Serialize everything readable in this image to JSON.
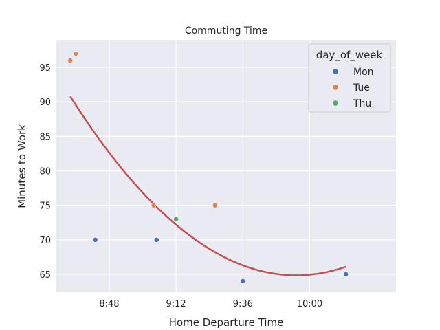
{
  "chart_data": {
    "type": "scatter",
    "title": "Commuting Time",
    "xlabel": "Home Departure Time",
    "ylabel": "Minutes to Work",
    "x_ticks": [
      "8:48",
      "9:12",
      "9:36",
      "10:00"
    ],
    "y_ticks": [
      65,
      70,
      75,
      80,
      85,
      90,
      95
    ],
    "xlim": [
      "8:29",
      "10:31"
    ],
    "ylim": [
      62.4,
      99.0
    ],
    "grid": true,
    "legend": {
      "title": "day_of_week",
      "placement": "top-right"
    },
    "series": [
      {
        "name": "Mon",
        "color": "#4c72b0",
        "points": [
          {
            "x": "8:43",
            "y": 70
          },
          {
            "x": "9:05",
            "y": 70
          },
          {
            "x": "9:36",
            "y": 64
          },
          {
            "x": "10:13",
            "y": 65
          }
        ]
      },
      {
        "name": "Tue",
        "color": "#dd8452",
        "points": [
          {
            "x": "8:34",
            "y": 96
          },
          {
            "x": "8:36",
            "y": 97
          },
          {
            "x": "9:04",
            "y": 75
          },
          {
            "x": "9:26",
            "y": 75
          }
        ]
      },
      {
        "name": "Thu",
        "color": "#55a868",
        "points": [
          {
            "x": "9:12",
            "y": 73
          }
        ]
      }
    ],
    "fit_line": {
      "type": "quadratic",
      "color": "#c44e52",
      "points": [
        {
          "x": "8:34",
          "y": 90.8
        },
        {
          "x": "8:48",
          "y": 80.9
        },
        {
          "x": "9:12",
          "y": 71.3
        },
        {
          "x": "9:36",
          "y": 66.3
        },
        {
          "x": "10:00",
          "y": 64.9
        },
        {
          "x": "10:13",
          "y": 66.1
        }
      ]
    }
  }
}
